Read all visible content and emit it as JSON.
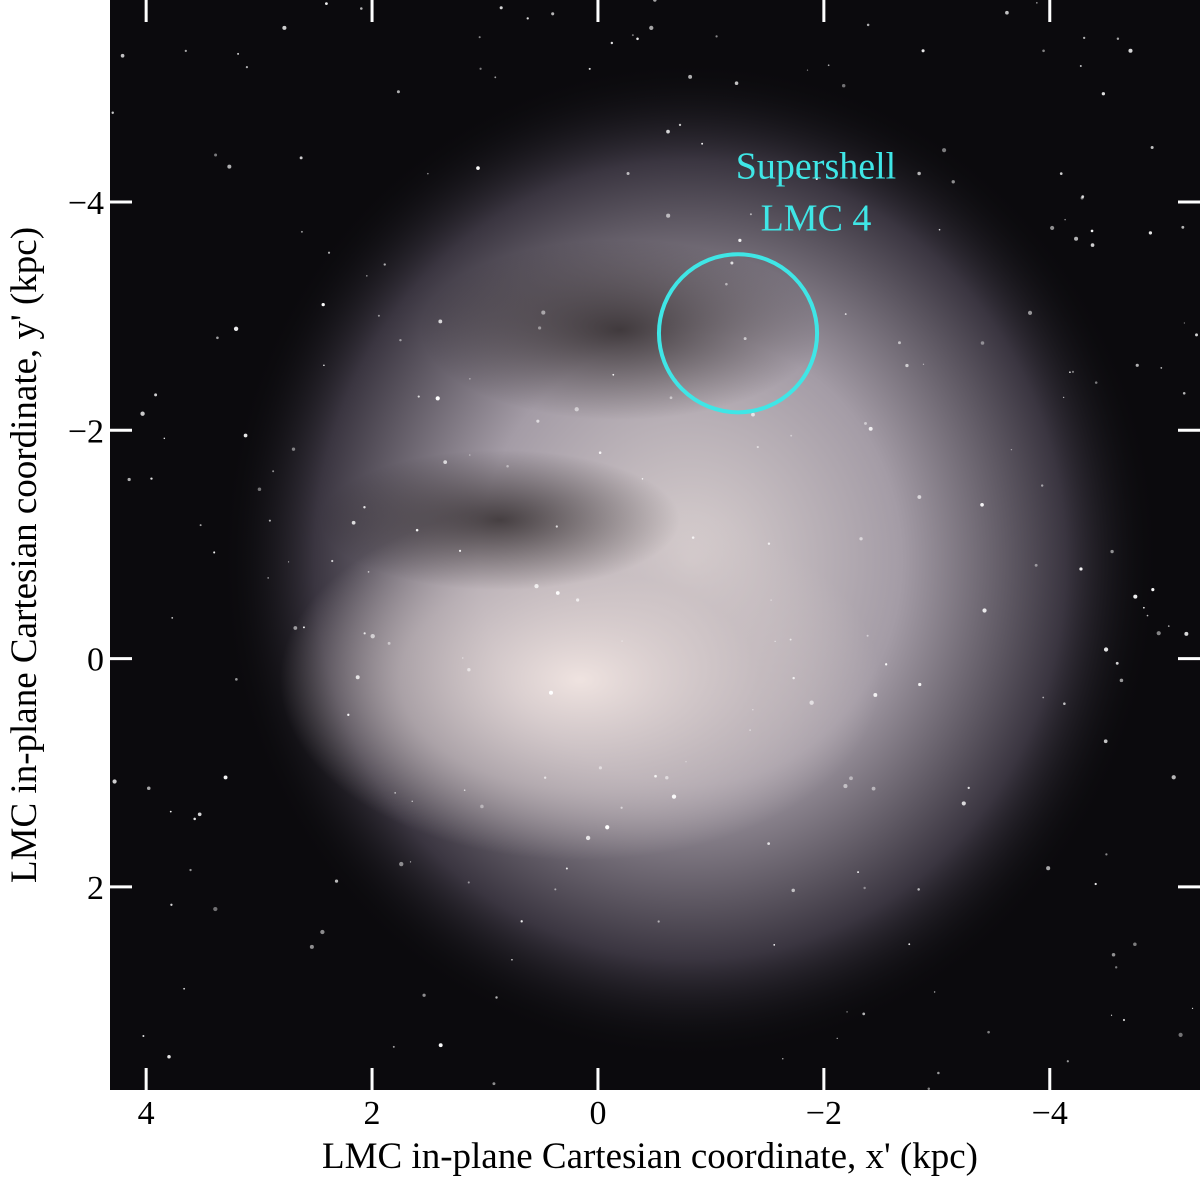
{
  "chart_data": {
    "type": "image",
    "xlabel": "LMC in-plane Cartesian coordinate, x' (kpc)",
    "ylabel": "LMC in-plane Cartesian coordinate, y' (kpc)",
    "xlim": [
      4.32,
      -5.33
    ],
    "ylim": [
      3.78,
      -5.77
    ],
    "xticks": [
      4,
      2,
      0,
      {
        "value": -2,
        "label": "−2"
      },
      {
        "value": -4,
        "label": "−4"
      }
    ],
    "yticks": [
      {
        "value": -4,
        "label": "−4"
      },
      {
        "value": -2,
        "label": "−2"
      },
      0,
      2
    ],
    "annotation": {
      "text": [
        "Supershell",
        "LMC 4"
      ],
      "x": -1.24,
      "y": -2.85,
      "radius": 0.7,
      "color": "#3fe6e6"
    }
  }
}
